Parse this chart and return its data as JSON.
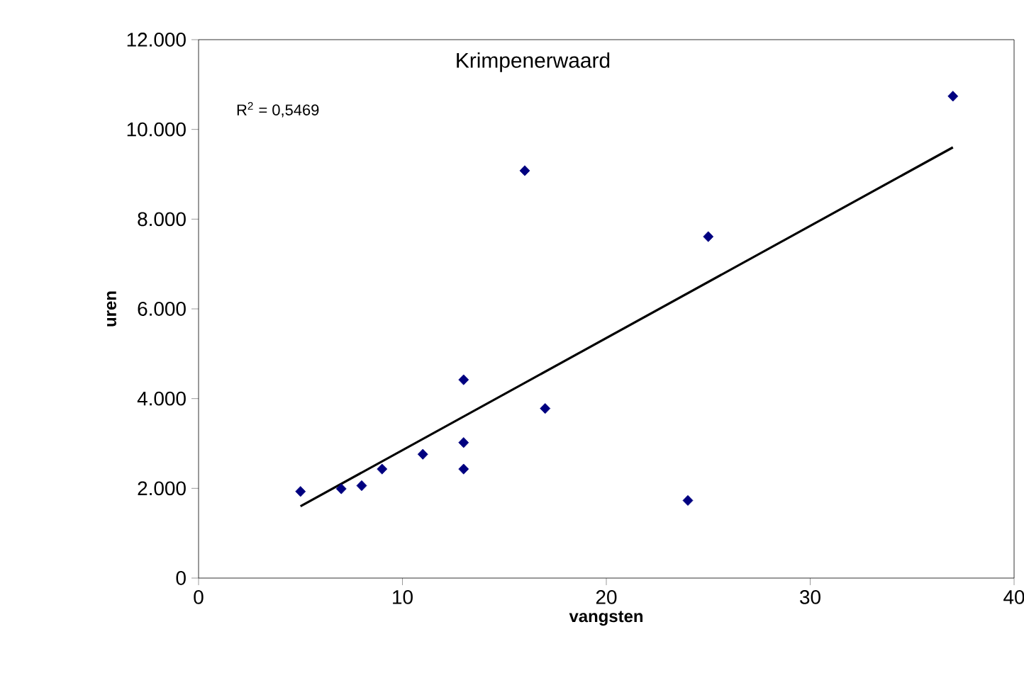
{
  "chart_data": {
    "type": "scatter",
    "title": "Krimpenerwaard",
    "xlabel": "vangsten",
    "ylabel": "uren",
    "annotations": [
      "R$^{2}$ = 0,5469"
    ],
    "xlim": [
      0,
      40
    ],
    "xticks": [
      0,
      10,
      20,
      30,
      40
    ],
    "ylim": [
      0,
      12000
    ],
    "yticks": [
      {
        "value": 0,
        "label": "0"
      },
      {
        "value": 2000,
        "label": "2.000"
      },
      {
        "value": 4000,
        "label": "4.000"
      },
      {
        "value": 6000,
        "label": "6.000"
      },
      {
        "value": 8000,
        "label": "8.000"
      },
      {
        "value": 10000,
        "label": "10.000"
      },
      {
        "value": 12000,
        "label": "12.000"
      }
    ],
    "grid": false,
    "series": [
      {
        "marker": "diamond",
        "color": "#000080",
        "x": [
          5,
          7,
          8,
          9,
          11,
          13,
          13,
          13,
          16,
          17,
          24,
          25,
          37
        ],
        "values": [
          1930,
          1990,
          2060,
          2430,
          2760,
          4420,
          3020,
          2430,
          9080,
          3780,
          1730,
          7610,
          10740
        ]
      },
      {
        "type": "line",
        "marker": "none",
        "color": "#000000",
        "x": [
          5,
          37
        ],
        "values": [
          1600,
          9600
        ]
      }
    ]
  }
}
